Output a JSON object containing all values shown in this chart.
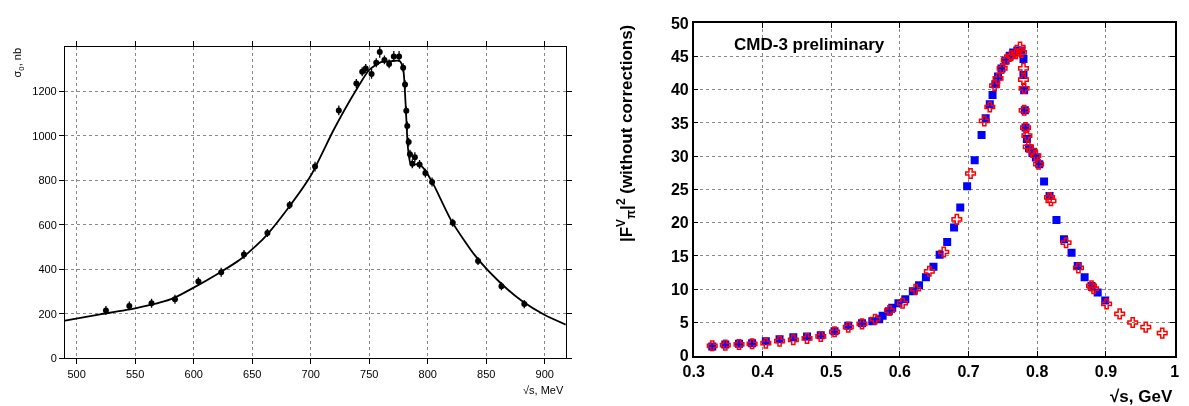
{
  "chart_data": [
    {
      "type": "scatter",
      "xlabel": "√s, MeV",
      "ylabel": "σ$_{0}$, nb",
      "xlim": [
        490,
        918
      ],
      "ylim": [
        0,
        1400
      ],
      "xticks": [
        500,
        550,
        600,
        650,
        700,
        750,
        800,
        850,
        900
      ],
      "yticks": [
        0,
        200,
        400,
        600,
        800,
        1000,
        1200
      ],
      "grid": true,
      "series": [
        {
          "marker": "circle",
          "color": "#000000",
          "x": [
            525,
            545,
            564,
            584,
            604,
            623.5,
            643,
            663,
            682,
            703.7,
            724,
            739,
            744,
            747,
            752,
            756,
            759,
            763,
            767,
            771,
            775.5,
            779,
            780.6,
            781.7,
            782.5,
            783.7,
            784.8,
            786.8,
            789,
            793,
            798,
            803.7,
            821.4,
            843,
            863,
            882.5
          ],
          "values": [
            215,
            236,
            248,
            266,
            345,
            387,
            467,
            563,
            689,
            861,
            1113,
            1234,
            1287,
            1301,
            1277,
            1327,
            1375,
            1340,
            1322,
            1355,
            1355,
            1305,
            1229,
            1112,
            1043,
            971,
            917,
            874,
            903,
            871,
            832,
            792,
            609,
            437,
            324,
            244
          ],
          "errors": [
            20,
            20,
            20,
            20,
            20,
            20,
            20,
            18,
            18,
            22,
            22,
            20,
            20,
            20,
            22,
            20,
            25,
            20,
            20,
            25,
            25,
            20,
            20,
            20,
            20,
            20,
            20,
            20,
            22,
            20,
            20,
            20,
            18,
            18,
            18,
            18
          ]
        },
        {
          "type": "line",
          "marker": "none",
          "color": "#000000",
          "x": [
            490,
            520,
            550,
            580,
            600,
            620,
            640,
            660,
            680,
            700,
            720,
            740,
            750,
            760,
            770,
            776,
            779,
            781,
            783,
            785,
            788,
            792,
            797,
            805,
            820,
            840,
            860,
            880,
            900,
            918
          ],
          "values": [
            170,
            198,
            225,
            265,
            318,
            378,
            445,
            540,
            670,
            820,
            1030,
            1215,
            1295,
            1330,
            1335,
            1335,
            1300,
            1150,
            950,
            880,
            870,
            872,
            850,
            780,
            620,
            465,
            350,
            260,
            195,
            152
          ]
        }
      ]
    },
    {
      "type": "scatter",
      "xlabel": "√s, GeV",
      "ylabel": "|F$^{V}$$_{π}$|$^{2}$ (without corrections)",
      "annotations": [
        "CMD-3 preliminary"
      ],
      "xlim": [
        0.3,
        1.0
      ],
      "ylim": [
        0,
        50
      ],
      "xticks": [
        0.3,
        0.4,
        0.5,
        0.6,
        0.7,
        0.8,
        0.9,
        {
          "value": 1.0,
          "label": "1"
        }
      ],
      "yticks": [
        0,
        5,
        10,
        15,
        20,
        25,
        30,
        35,
        40,
        45,
        50
      ],
      "grid": true,
      "series": [
        {
          "marker": "square",
          "color": "#0000ff",
          "x": [
            0.327,
            0.346,
            0.366,
            0.385,
            0.405,
            0.425,
            0.445,
            0.465,
            0.485,
            0.505,
            0.525,
            0.545,
            0.56,
            0.57,
            0.575,
            0.584,
            0.589,
            0.598,
            0.608,
            0.619,
            0.628,
            0.638,
            0.649,
            0.658,
            0.669,
            0.679,
            0.688,
            0.698,
            0.709,
            0.719,
            0.725,
            0.731,
            0.735,
            0.739,
            0.743,
            0.748,
            0.754,
            0.76,
            0.765,
            0.771,
            0.777,
            0.78,
            0.78,
            0.781,
            0.782,
            0.783,
            0.785,
            0.788,
            0.793,
            0.798,
            0.803,
            0.81,
            0.818,
            0.828,
            0.839,
            0.85,
            0.859,
            0.869,
            0.879,
            0.888,
            0.899
          ],
          "values": [
            1.4,
            1.7,
            1.8,
            1.9,
            2.2,
            2.5,
            2.8,
            2.9,
            3.1,
            3.7,
            4.5,
            4.9,
            5.2,
            5.5,
            6.0,
            6.7,
            7.2,
            7.9,
            8.5,
            9.7,
            10.6,
            11.8,
            13.4,
            15.2,
            17.1,
            19.3,
            22.3,
            25.5,
            29.4,
            33.2,
            35.7,
            37.8,
            39.2,
            40.8,
            42.0,
            43.2,
            44.4,
            45.1,
            45.6,
            45.9,
            45.9,
            44.6,
            42.2,
            39.9,
            36.9,
            34.3,
            32.6,
            31.2,
            30.5,
            29.8,
            28.8,
            26.2,
            24.0,
            20.4,
            17.5,
            15.5,
            13.5,
            11.8,
            10.5,
            9.5,
            8.3
          ]
        },
        {
          "marker": "cross",
          "color": "#ff0000",
          "x": [
            0.327,
            0.346,
            0.366,
            0.385,
            0.405,
            0.425,
            0.445,
            0.465,
            0.485,
            0.505,
            0.525,
            0.545,
            0.564,
            0.585,
            0.604,
            0.623,
            0.643,
            0.664,
            0.683,
            0.703,
            0.723,
            0.731,
            0.738,
            0.743,
            0.749,
            0.755,
            0.762,
            0.769,
            0.775,
            0.777,
            0.78,
            0.78,
            0.781,
            0.781,
            0.783,
            0.785,
            0.787,
            0.792,
            0.798,
            0.802,
            0.818,
            0.82,
            0.842,
            0.86,
            0.879,
            0.882,
            0.901,
            0.92,
            0.939,
            0.958,
            0.982
          ],
          "values": [
            1.5,
            1.6,
            1.7,
            1.8,
            1.9,
            2.2,
            2.4,
            2.6,
            2.9,
            3.6,
            4.3,
            4.8,
            5.5,
            6.8,
            7.9,
            10.0,
            12.7,
            15.6,
            20.5,
            27.4,
            35.3,
            37.4,
            40.6,
            41.7,
            43.2,
            44.5,
            45.1,
            45.4,
            46.4,
            45.6,
            43.2,
            41.5,
            40.2,
            36.9,
            34.3,
            33.1,
            31.4,
            30.9,
            30.1,
            28.8,
            23.8,
            23.3,
            17.0,
            13.2,
            10.5,
            10.1,
            7.8,
            6.3,
            5.0,
            4.3,
            3.4
          ]
        }
      ]
    }
  ]
}
